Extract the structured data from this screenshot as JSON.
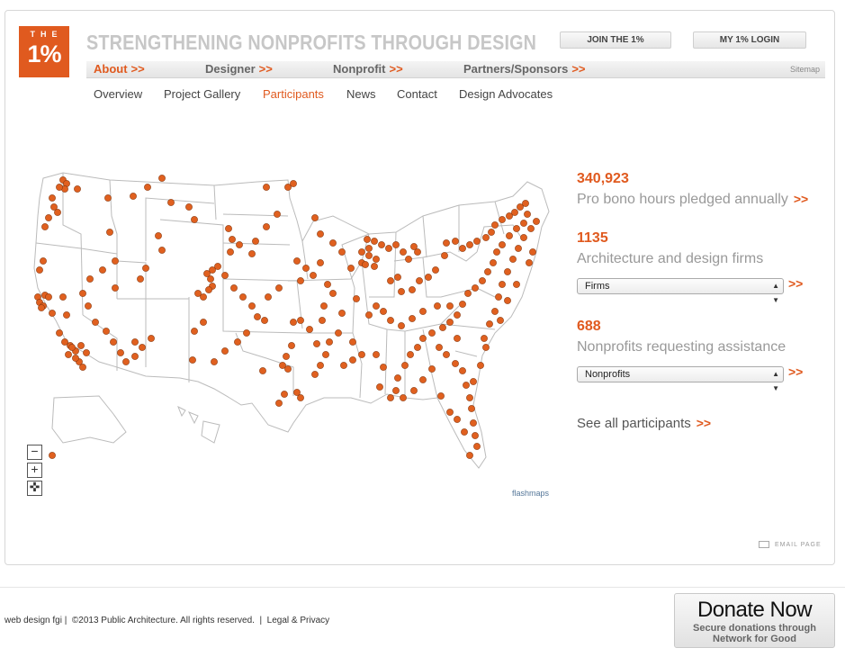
{
  "logo": {
    "top": "THE",
    "main": "1%"
  },
  "header": {
    "tagline": "STRENGTHENING NONPROFITS THROUGH DESIGN",
    "join_label": "JOIN THE 1%",
    "login_label": "MY 1% LOGIN"
  },
  "nav": {
    "items": [
      {
        "label": "About",
        "arrow": ">>"
      },
      {
        "label": "Designer",
        "arrow": ">>"
      },
      {
        "label": "Nonprofit",
        "arrow": ">>"
      },
      {
        "label": "Partners/Sponsors",
        "arrow": ">>"
      }
    ],
    "sitemap": "Sitemap"
  },
  "subnav": [
    "Overview",
    "Project Gallery",
    "Participants",
    "News",
    "Contact",
    "Design Advocates"
  ],
  "map": {
    "zoom_out": "−",
    "zoom_in": "+",
    "reset": "✜",
    "credit": "flashmaps",
    "dot_color": "#e0601f"
  },
  "stats": [
    {
      "number": "340,923",
      "label": "Pro bono hours pledged annually",
      "arrow": ">>"
    },
    {
      "number": "1135",
      "label": "Architecture and design firms",
      "select": "Firms",
      "arrow": ">>"
    },
    {
      "number": "688",
      "label": "Nonprofits requesting assistance",
      "select": "Nonprofits",
      "arrow": ">>"
    }
  ],
  "see_all": {
    "label": "See all participants",
    "arrow": ">>"
  },
  "email_page": "EMAIL PAGE",
  "footer": {
    "credit": "web design fgi",
    "copyright": "©2013 Public Architecture. All rights reserved.",
    "legal": "Legal & Privacy",
    "sep": "|"
  },
  "donate": {
    "title": "Donate Now",
    "line1": "Secure donations through",
    "line2": "Network for Good"
  },
  "colors": {
    "accent": "#e05a1f",
    "muted": "#999999"
  }
}
